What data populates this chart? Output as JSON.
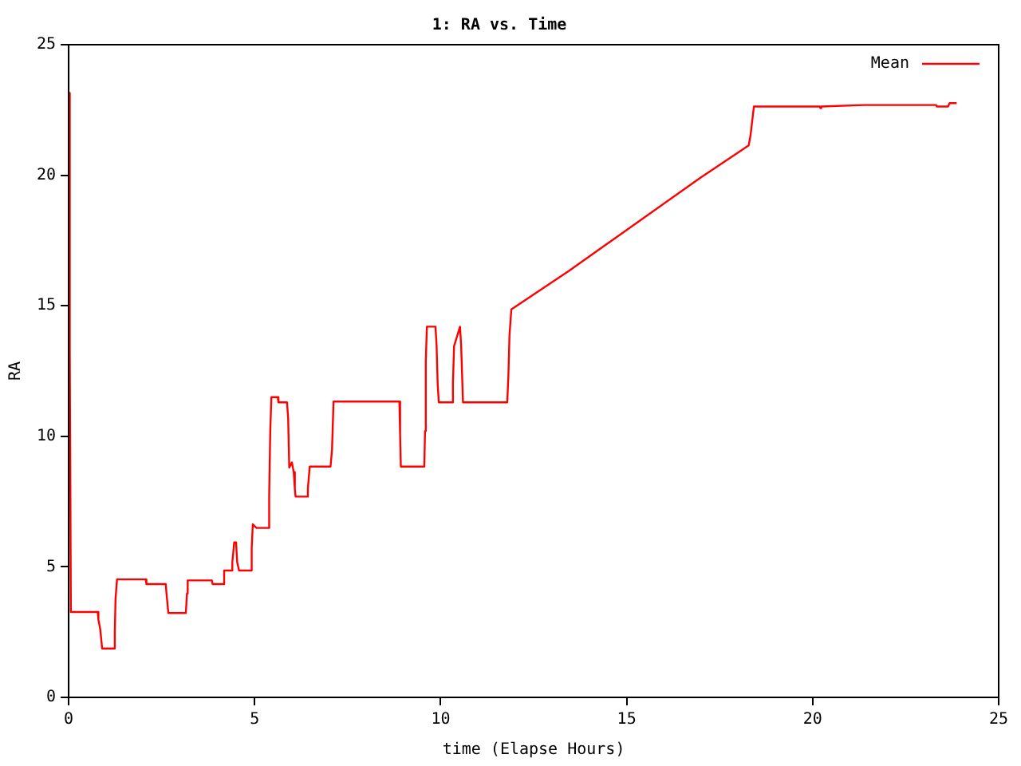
{
  "chart_data": {
    "type": "line",
    "title": "1: RA vs. Time",
    "xlabel": "time (Elapse Hours)",
    "ylabel": "RA",
    "series": [
      {
        "name": "Mean",
        "color": "#ff0000",
        "x": [
          0,
          0.03,
          0.06,
          0.78,
          0.8,
          0.85,
          0.9,
          1.22,
          1.24,
          1.26,
          1.3,
          2.07,
          2.09,
          2.61,
          2.63,
          2.68,
          3.15,
          3.18,
          3.2,
          3.85,
          3.87,
          4.16,
          4.18,
          4.38,
          4.4,
          4.45,
          4.5,
          4.53,
          4.58,
          4.89,
          4.92,
          4.95,
          5.05,
          5.37,
          5.39,
          5.42,
          5.45,
          5.62,
          5.64,
          5.87,
          5.9,
          5.93,
          6.0,
          6.05,
          6.08,
          6.1,
          6.4,
          6.43,
          6.48,
          7.04,
          7.08,
          7.12,
          8.89,
          8.91,
          8.93,
          9.56,
          9.58,
          9.6,
          9.63,
          9.86,
          9.89,
          9.92,
          9.95,
          10.3,
          10.33,
          10.36,
          10.52,
          10.55,
          10.6,
          11.79,
          11.82,
          11.85,
          11.9,
          13.44,
          16.96,
          18.28,
          18.33,
          18.42,
          20.19,
          20.21,
          20.23,
          21.38,
          23.32,
          23.34,
          23.64,
          23.68,
          23.87
        ],
        "values": [
          23.15,
          13.2,
          3.27,
          3.27,
          2.97,
          2.6,
          1.87,
          1.87,
          2.5,
          3.78,
          4.52,
          4.52,
          4.34,
          4.34,
          3.98,
          3.23,
          3.23,
          3.98,
          4.48,
          4.48,
          4.34,
          4.34,
          4.86,
          4.86,
          5.18,
          5.94,
          5.94,
          5.18,
          4.86,
          4.86,
          5.7,
          6.63,
          6.49,
          6.49,
          7.73,
          10.24,
          11.5,
          11.5,
          11.3,
          11.3,
          10.7,
          8.8,
          9.0,
          8.63,
          7.99,
          7.69,
          7.69,
          7.99,
          8.84,
          8.84,
          9.5,
          11.33,
          11.33,
          10.04,
          8.84,
          8.84,
          10.2,
          12.85,
          14.2,
          14.2,
          13.5,
          12.0,
          11.3,
          11.3,
          12.0,
          13.45,
          14.2,
          13.5,
          11.3,
          11.3,
          12.3,
          13.86,
          14.86,
          16.33,
          19.88,
          21.14,
          21.53,
          22.63,
          22.63,
          22.57,
          22.63,
          22.69,
          22.69,
          22.63,
          22.63,
          22.76,
          22.76
        ]
      }
    ],
    "xlim": [
      0,
      25
    ],
    "xticks": [
      0,
      5,
      10,
      15,
      20,
      25
    ],
    "ylim": [
      0,
      25
    ],
    "yticks": [
      0,
      5,
      10,
      15,
      20,
      25
    ],
    "legend": "top right",
    "grid": false,
    "marker": "none",
    "line_style": "solid"
  }
}
